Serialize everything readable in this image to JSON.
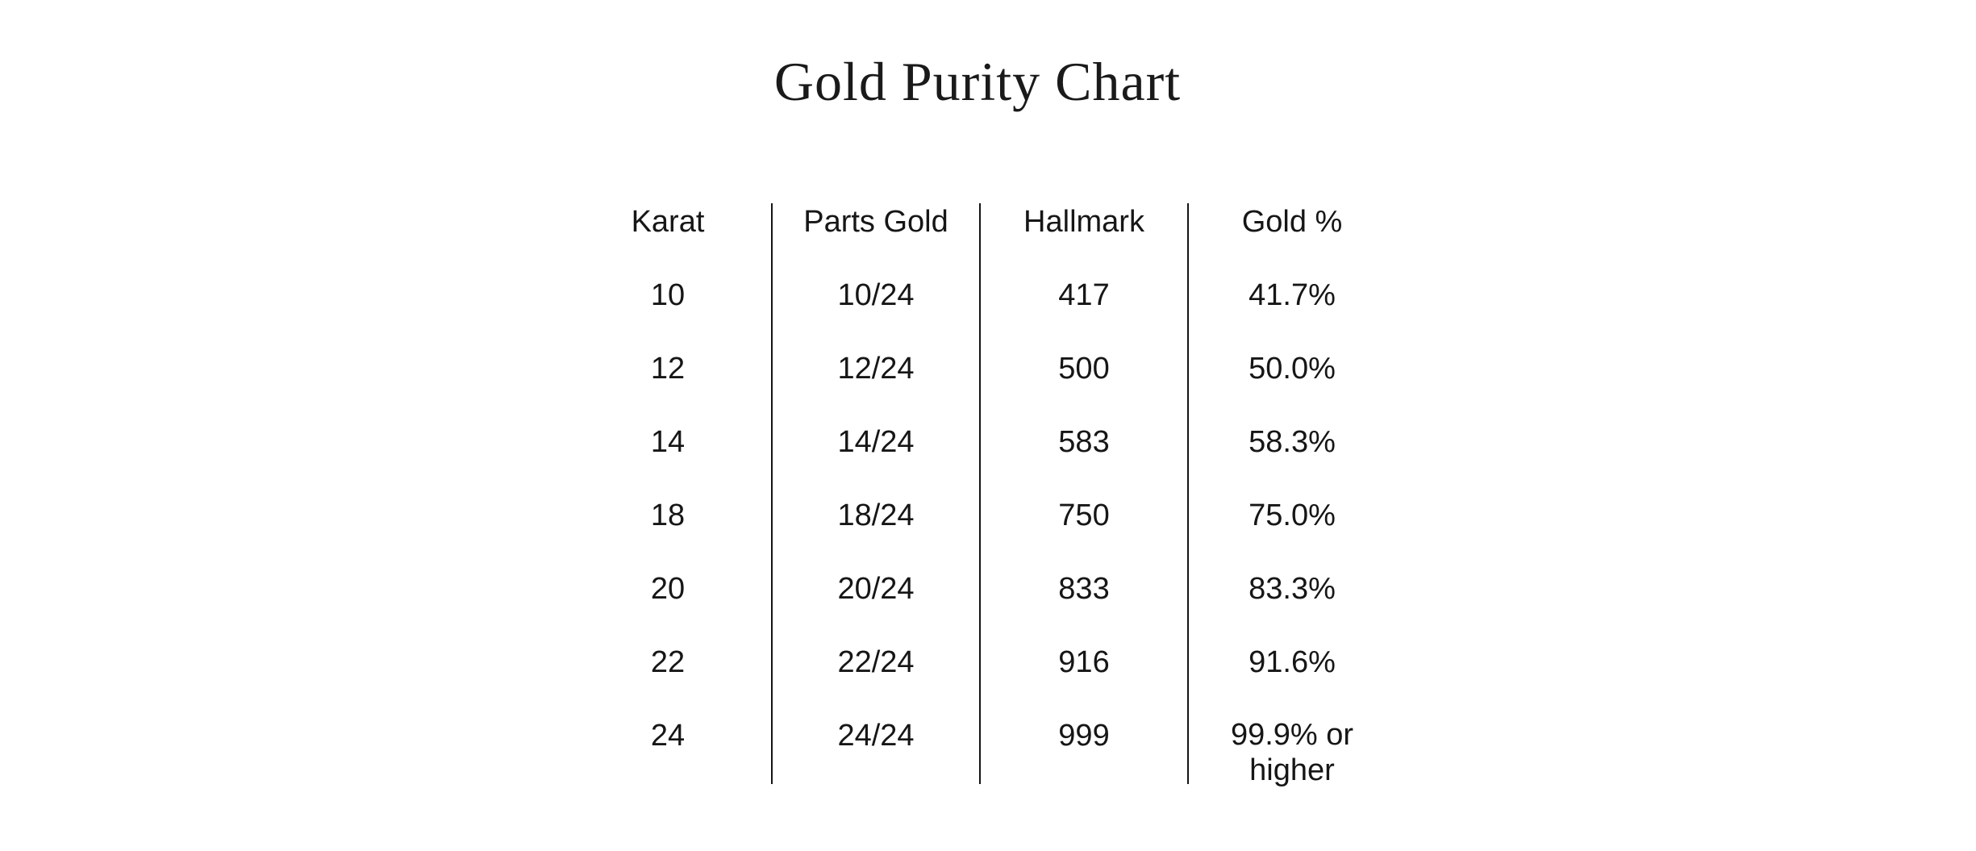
{
  "title": "Gold Purity Chart",
  "colors": {
    "background": "#ffffff",
    "text": "#161616",
    "divider": "#141414"
  },
  "chart_data": {
    "type": "table",
    "title": "Gold Purity Chart",
    "columns": [
      "Karat",
      "Parts Gold",
      "Hallmark",
      "Gold %"
    ],
    "rows": [
      [
        "10",
        "10/24",
        "417",
        "41.7%"
      ],
      [
        "12",
        "12/24",
        "500",
        "50.0%"
      ],
      [
        "14",
        "14/24",
        "583",
        "58.3%"
      ],
      [
        "18",
        "18/24",
        "750",
        "75.0%"
      ],
      [
        "20",
        "20/24",
        "833",
        "83.3%"
      ],
      [
        "22",
        "22/24",
        "916",
        "91.6%"
      ],
      [
        "24",
        "24/24",
        "999",
        "99.9% or higher"
      ]
    ],
    "layout": {
      "legend": "none",
      "grid": "vertical-dividers-only",
      "column_alignment": "center"
    }
  }
}
